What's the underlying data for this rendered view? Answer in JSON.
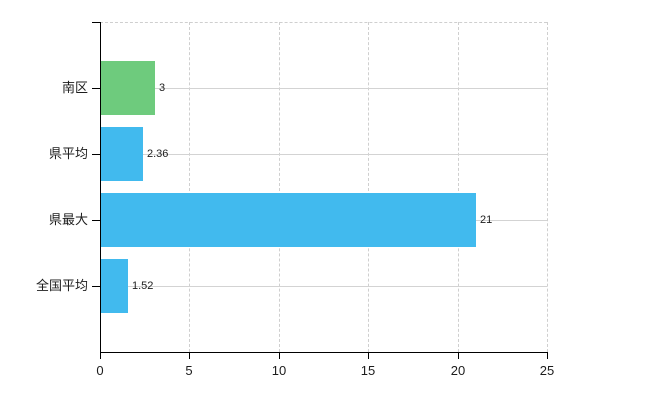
{
  "chart_data": {
    "type": "bar",
    "orientation": "horizontal",
    "title": "",
    "xlabel": "",
    "ylabel": "",
    "categories": [
      "南区",
      "県平均",
      "県最大",
      "全国平均"
    ],
    "values": [
      3,
      2.36,
      21,
      1.52
    ],
    "value_labels": [
      "3",
      "2.36",
      "21",
      "1.52"
    ],
    "bar_colors": [
      "#6ecb7d",
      "#41baee",
      "#41baee",
      "#41baee"
    ],
    "xlim": [
      0,
      25
    ],
    "x_ticks": [
      0,
      5,
      10,
      15,
      20,
      25
    ],
    "grid": true,
    "legend": false
  },
  "colors": {
    "bar_blue": "#41baee",
    "bar_green": "#6ecb7d",
    "grid_solid": "#d3d3d3",
    "grid_dashed": "#cfcfcf",
    "axis": "#000000",
    "text": "#1c1c1c",
    "background": "#ffffff"
  }
}
